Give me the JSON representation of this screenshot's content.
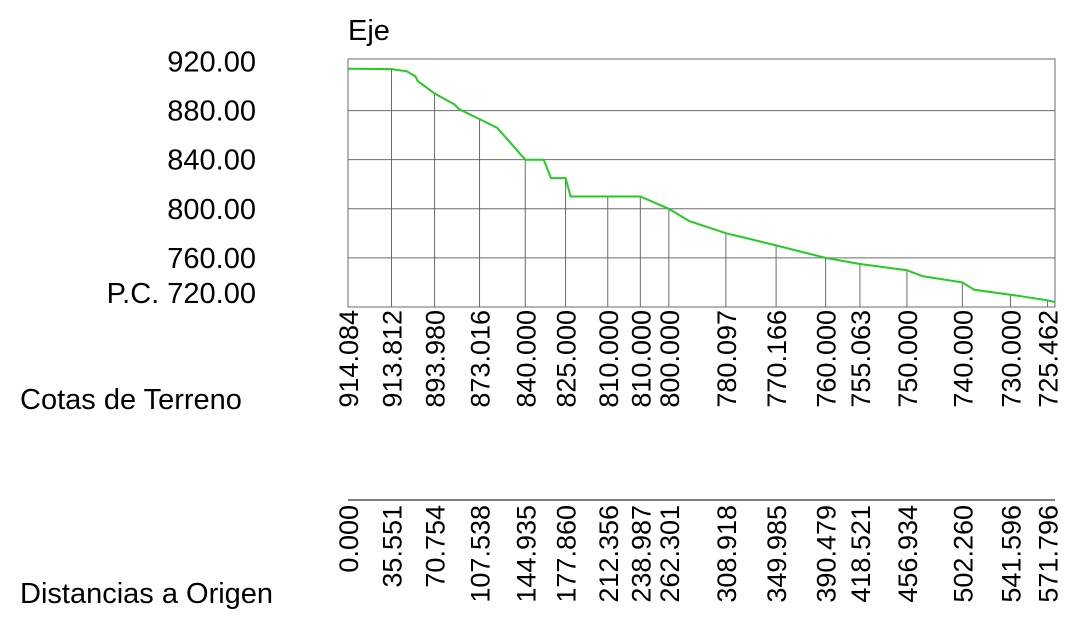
{
  "chart_data": {
    "type": "line",
    "title": "Eje",
    "y_axis_labels": [
      "920.00",
      "880.00",
      "840.00",
      "800.00",
      "760.00",
      "P.C. 720.00"
    ],
    "y_axis_values": [
      920,
      880,
      840,
      800,
      760,
      720
    ],
    "ylim": [
      720,
      922
    ],
    "xlim": [
      0,
      578
    ],
    "grid": true,
    "series_color": "#22cc22",
    "row_labels": {
      "elevations": "Cotas de Terreno",
      "distances": "Distancias a Origen"
    },
    "stations": [
      {
        "distance": "0.000",
        "x": 0.0,
        "elevation": "914.084",
        "y": 914.084
      },
      {
        "distance": "35.551",
        "x": 35.551,
        "elevation": "913.812",
        "y": 913.812
      },
      {
        "distance": "70.754",
        "x": 70.754,
        "elevation": "893.980",
        "y": 893.98
      },
      {
        "distance": "107.538",
        "x": 107.538,
        "elevation": "873.016",
        "y": 873.016
      },
      {
        "distance": "144.935",
        "x": 144.935,
        "elevation": "840.000",
        "y": 840.0
      },
      {
        "distance": "177.860",
        "x": 177.86,
        "elevation": "825.000",
        "y": 825.0
      },
      {
        "distance": "212.356",
        "x": 212.356,
        "elevation": "810.000",
        "y": 810.0
      },
      {
        "distance": "238.987",
        "x": 238.987,
        "elevation": "810.000",
        "y": 810.0
      },
      {
        "distance": "262.301",
        "x": 262.301,
        "elevation": "800.000",
        "y": 800.0
      },
      {
        "distance": "308.918",
        "x": 308.918,
        "elevation": "780.097",
        "y": 780.097
      },
      {
        "distance": "349.985",
        "x": 349.985,
        "elevation": "770.166",
        "y": 770.166
      },
      {
        "distance": "390.479",
        "x": 390.479,
        "elevation": "760.000",
        "y": 760.0
      },
      {
        "distance": "418.521",
        "x": 418.521,
        "elevation": "755.063",
        "y": 755.063
      },
      {
        "distance": "456.934",
        "x": 456.934,
        "elevation": "750.000",
        "y": 750.0
      },
      {
        "distance": "502.260",
        "x": 502.26,
        "elevation": "740.000",
        "y": 740.0
      },
      {
        "distance": "541.596",
        "x": 541.596,
        "elevation": "730.000",
        "y": 730.0
      },
      {
        "distance": "571.796",
        "x": 571.796,
        "elevation": "725.462",
        "y": 725.462
      }
    ],
    "profile_line": [
      [
        0,
        914.084
      ],
      [
        35.551,
        913.812
      ],
      [
        48,
        912
      ],
      [
        55,
        908
      ],
      [
        57,
        904
      ],
      [
        70.754,
        893.98
      ],
      [
        87,
        885
      ],
      [
        91,
        881
      ],
      [
        107.538,
        873.016
      ],
      [
        122,
        866
      ],
      [
        144.935,
        840
      ],
      [
        160,
        840
      ],
      [
        166,
        825
      ],
      [
        177.86,
        825
      ],
      [
        182,
        810
      ],
      [
        212.356,
        810
      ],
      [
        238.987,
        810
      ],
      [
        262.301,
        800
      ],
      [
        279,
        790
      ],
      [
        308.918,
        780.097
      ],
      [
        349.985,
        770.166
      ],
      [
        390.479,
        760
      ],
      [
        418.521,
        755.063
      ],
      [
        456.934,
        750
      ],
      [
        470,
        745
      ],
      [
        502.26,
        740
      ],
      [
        512,
        734
      ],
      [
        541.596,
        730
      ],
      [
        571.796,
        725.462
      ],
      [
        578,
        724
      ]
    ]
  }
}
